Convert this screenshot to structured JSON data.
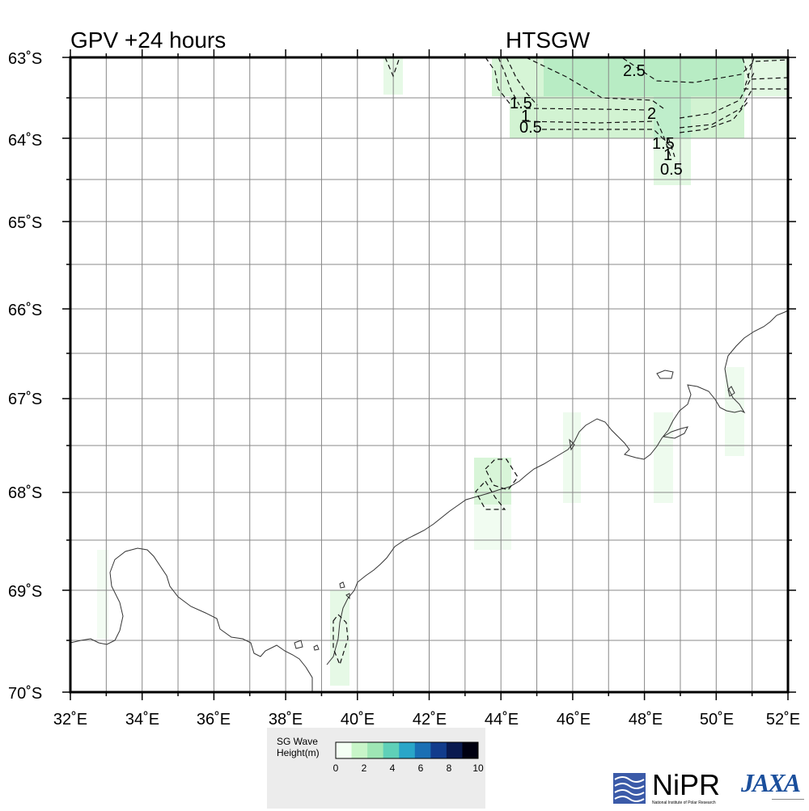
{
  "header": {
    "left_title": "GPV +24 hours",
    "right_title": "HTSGW"
  },
  "axes": {
    "lat_labels": [
      "63˚S",
      "64˚S",
      "65˚S",
      "66˚S",
      "67˚S",
      "68˚S",
      "69˚S",
      "70˚S"
    ],
    "lon_labels": [
      "32˚E",
      "34˚E",
      "36˚E",
      "38˚E",
      "40˚E",
      "42˚E",
      "44˚E",
      "46˚E",
      "48˚E",
      "50˚E",
      "52˚E"
    ]
  },
  "contour_labels": [
    "2.5",
    "2",
    "1.5",
    "1",
    "0.5",
    "1.5",
    "1",
    "0.5"
  ],
  "colorbar": {
    "title_line1": "SG Wave",
    "title_line2": "Height(m)",
    "ticks": [
      "0",
      "2",
      "4",
      "6",
      "8",
      "10"
    ],
    "colors": [
      "#f4fff4",
      "#c8f5c8",
      "#9ee6b4",
      "#5fd0b8",
      "#2aa6c8",
      "#1a6fb4",
      "#123c8c",
      "#0a1a50",
      "#000010"
    ]
  },
  "logos": {
    "nipr": "NiPR",
    "nipr_sub": "National Institute of Polar Research",
    "jaxa": "JAXA"
  }
}
